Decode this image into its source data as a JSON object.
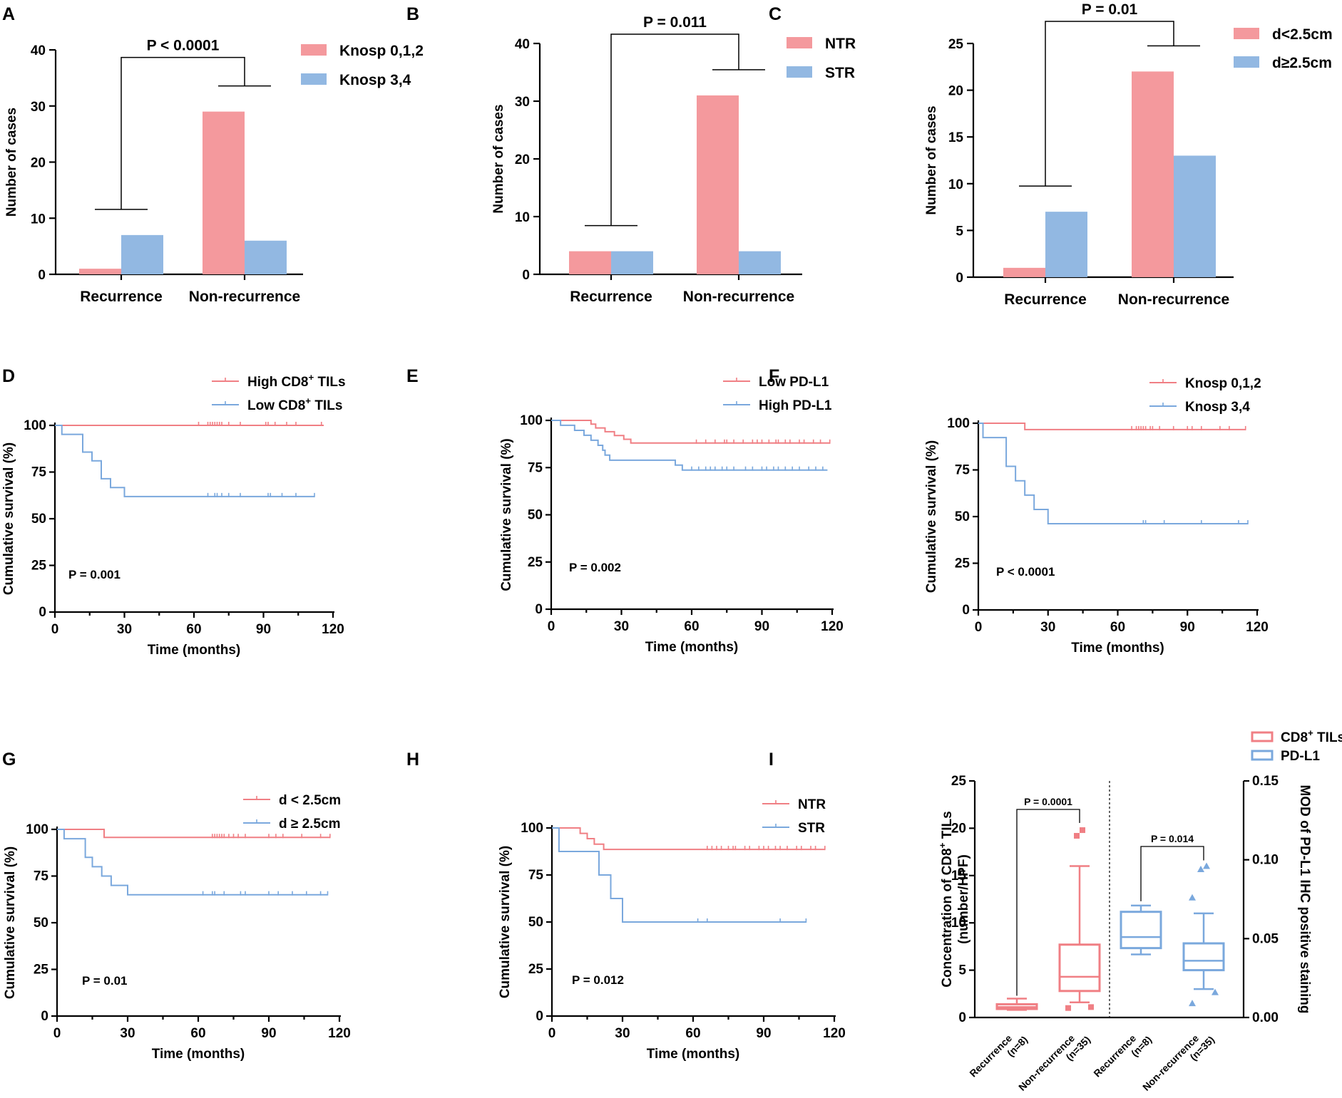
{
  "colors": {
    "pink": "#f4999d",
    "blue": "#92b8e2",
    "pink_line": "#f07f84",
    "blue_line": "#7aa8dd",
    "axis": "#000000"
  },
  "chart_data": [
    {
      "panel": "A",
      "type": "bar",
      "categories": [
        "Recurrence",
        "Non-recurrence"
      ],
      "series": [
        {
          "name": "Knosp 0,1,2",
          "values": [
            1,
            29
          ],
          "color": "pink"
        },
        {
          "name": "Knosp 3,4",
          "values": [
            7,
            6
          ],
          "color": "blue"
        }
      ],
      "ylabel": "Number of cases",
      "ylim": [
        0,
        40
      ],
      "yticks": [
        0,
        10,
        20,
        30,
        40
      ],
      "p_value": "P < 0.0001"
    },
    {
      "panel": "B",
      "type": "bar",
      "categories": [
        "Recurrence",
        "Non-recurrence"
      ],
      "series": [
        {
          "name": "NTR",
          "values": [
            4,
            31
          ],
          "color": "pink"
        },
        {
          "name": "STR",
          "values": [
            4,
            4
          ],
          "color": "blue"
        }
      ],
      "ylabel": "Number of cases",
      "ylim": [
        0,
        40
      ],
      "yticks": [
        0,
        10,
        20,
        30,
        40
      ],
      "p_value": "P = 0.011"
    },
    {
      "panel": "C",
      "type": "bar",
      "categories": [
        "Recurrence",
        "Non-recurrence"
      ],
      "series": [
        {
          "name": "d<2.5cm",
          "values": [
            1,
            22
          ],
          "color": "pink"
        },
        {
          "name": "d≥2.5cm",
          "values": [
            7,
            13
          ],
          "color": "blue"
        }
      ],
      "ylabel": "Number of cases",
      "ylim": [
        0,
        25
      ],
      "yticks": [
        0,
        5,
        10,
        15,
        20,
        25
      ],
      "p_value": "P = 0.01"
    },
    {
      "panel": "D",
      "type": "line",
      "xlabel": "Time (months)",
      "ylabel": "Cumulative survival (%)",
      "xlim": [
        0,
        120
      ],
      "xticks": [
        0,
        30,
        60,
        90,
        120
      ],
      "ylim": [
        0,
        100
      ],
      "yticks": [
        0,
        25,
        50,
        75,
        100
      ],
      "p_value": "P = 0.001",
      "series": [
        {
          "name": "High CD8",
          "sup": "+",
          "suffix": " TILs",
          "color": "pink",
          "steps": [
            [
              0,
              100
            ],
            [
              116,
              100
            ]
          ],
          "censors": [
            62,
            66,
            67,
            68,
            69,
            70,
            71,
            72,
            75,
            80,
            91,
            92,
            95,
            100,
            104,
            115
          ]
        },
        {
          "name": "Low CD8",
          "sup": "+",
          "suffix": " TILs",
          "color": "blue",
          "steps": [
            [
              0,
              100
            ],
            [
              3,
              95.2
            ],
            [
              12,
              85.7
            ],
            [
              16,
              81
            ],
            [
              20,
              71.4
            ],
            [
              24,
              66.7
            ],
            [
              30,
              61.9
            ],
            [
              112,
              61.9
            ]
          ],
          "censors": [
            66,
            69,
            70,
            72,
            75,
            80,
            92,
            93,
            98,
            104,
            112
          ]
        }
      ]
    },
    {
      "panel": "E",
      "type": "line",
      "xlabel": "Time (months)",
      "ylabel": "Cumulative survival (%)",
      "xlim": [
        0,
        120
      ],
      "xticks": [
        0,
        30,
        60,
        90,
        120
      ],
      "ylim": [
        0,
        100
      ],
      "yticks": [
        0,
        25,
        50,
        75,
        100
      ],
      "p_value": "P = 0.002",
      "series": [
        {
          "name": "Low PD-L1",
          "color": "pink",
          "steps": [
            [
              0,
              100
            ],
            [
              17,
              98
            ],
            [
              19,
              96
            ],
            [
              23,
              94
            ],
            [
              27,
              92
            ],
            [
              31,
              90
            ],
            [
              34,
              88
            ],
            [
              119,
              88
            ]
          ],
          "censors": [
            62,
            66,
            70,
            74,
            75,
            78,
            82,
            86,
            88,
            90,
            93,
            96,
            97,
            100,
            102,
            106,
            108,
            112,
            115,
            119
          ]
        },
        {
          "name": "High PD-L1",
          "color": "blue",
          "steps": [
            [
              0,
              100
            ],
            [
              4,
              97.4
            ],
            [
              10,
              94.7
            ],
            [
              14,
              92.1
            ],
            [
              17,
              89.5
            ],
            [
              20,
              86.8
            ],
            [
              22,
              84.2
            ],
            [
              23,
              81.6
            ],
            [
              25,
              78.9
            ],
            [
              53,
              76.3
            ],
            [
              56,
              73.7
            ],
            [
              118,
              73.7
            ]
          ],
          "censors": [
            60,
            63,
            66,
            68,
            70,
            73,
            75,
            78,
            83,
            86,
            90,
            92,
            95,
            97,
            100,
            103,
            106,
            110,
            113,
            116
          ]
        }
      ]
    },
    {
      "panel": "F",
      "type": "line",
      "xlabel": "Time (months)",
      "ylabel": "Cumulative survival (%)",
      "xlim": [
        0,
        120
      ],
      "xticks": [
        0,
        30,
        60,
        90,
        120
      ],
      "ylim": [
        0,
        100
      ],
      "yticks": [
        0,
        25,
        50,
        75,
        100
      ],
      "p_value": "P < 0.0001",
      "series": [
        {
          "name": "Knosp 0,1,2",
          "color": "pink",
          "steps": [
            [
              0,
              100
            ],
            [
              20,
              96.6
            ],
            [
              115,
              96.6
            ]
          ],
          "censors": [
            66,
            68,
            69,
            70,
            71,
            72,
            74,
            75,
            78,
            84,
            90,
            92,
            96,
            104,
            108,
            115
          ]
        },
        {
          "name": "Knosp 3,4",
          "color": "blue",
          "steps": [
            [
              0,
              100
            ],
            [
              2,
              92.3
            ],
            [
              12,
              76.9
            ],
            [
              16,
              69.2
            ],
            [
              20,
              61.5
            ],
            [
              24,
              53.8
            ],
            [
              30,
              46.2
            ],
            [
              116,
              46.2
            ]
          ],
          "censors": [
            71,
            72,
            80,
            96,
            112,
            116
          ]
        }
      ]
    },
    {
      "panel": "G",
      "type": "line",
      "xlabel": "Time (months)",
      "ylabel": "Cumulative survival (%)",
      "xlim": [
        0,
        120
      ],
      "xticks": [
        0,
        30,
        60,
        90,
        120
      ],
      "ylim": [
        0,
        100
      ],
      "yticks": [
        0,
        25,
        50,
        75,
        100
      ],
      "p_value": "P = 0.01",
      "series": [
        {
          "name": "d < 2.5cm",
          "color": "pink",
          "steps": [
            [
              0,
              100
            ],
            [
              20,
              95.7
            ],
            [
              116,
              95.7
            ]
          ],
          "censors": [
            66,
            67,
            68,
            69,
            70,
            71,
            73,
            75,
            77,
            80,
            90,
            93,
            96,
            104,
            112,
            116
          ]
        },
        {
          "name": "d ≥ 2.5cm",
          "color": "blue",
          "steps": [
            [
              0,
              100
            ],
            [
              3,
              95
            ],
            [
              12,
              85
            ],
            [
              15,
              80
            ],
            [
              19,
              75
            ],
            [
              23,
              70
            ],
            [
              30,
              65
            ],
            [
              115,
              65
            ]
          ],
          "censors": [
            62,
            66,
            67,
            71,
            78,
            80,
            90,
            94,
            100,
            106,
            112,
            115
          ]
        }
      ]
    },
    {
      "panel": "H",
      "type": "line",
      "xlabel": "Time (months)",
      "ylabel": "Cumulative survival (%)",
      "xlim": [
        0,
        120
      ],
      "xticks": [
        0,
        30,
        60,
        90,
        120
      ],
      "ylim": [
        0,
        100
      ],
      "yticks": [
        0,
        25,
        50,
        75,
        100
      ],
      "p_value": "P = 0.012",
      "series": [
        {
          "name": "NTR",
          "color": "pink",
          "steps": [
            [
              0,
              100
            ],
            [
              12,
              97.1
            ],
            [
              15,
              94.3
            ],
            [
              18,
              91.4
            ],
            [
              22,
              88.6
            ],
            [
              116,
              88.6
            ]
          ],
          "censors": [
            66,
            68,
            70,
            72,
            75,
            77,
            78,
            82,
            84,
            88,
            90,
            92,
            95,
            97,
            100,
            104,
            106,
            110,
            112,
            116
          ]
        },
        {
          "name": "STR",
          "color": "blue",
          "steps": [
            [
              0,
              100
            ],
            [
              3,
              87.5
            ],
            [
              20,
              75
            ],
            [
              25,
              62.5
            ],
            [
              30,
              50
            ],
            [
              108,
              50
            ]
          ],
          "censors": [
            62,
            66,
            97,
            108
          ]
        }
      ]
    },
    {
      "panel": "I",
      "type": "box",
      "legend": [
        {
          "name": "CD8",
          "sup": "+",
          "suffix": " TILs",
          "color": "pink"
        },
        {
          "name": "PD-L1",
          "color": "blue"
        }
      ],
      "ylabel_left_line1": "Concentration of CD8",
      "ylabel_left_sup": "+",
      "ylabel_left_line1_suffix": " TILs",
      "ylabel_left_line2": "(number/HPF)",
      "ylabel_right": "MOD of PD-L1 IHC positive staining",
      "ylim_left": [
        0,
        25
      ],
      "yticks_left": [
        0,
        5,
        10,
        15,
        20,
        25
      ],
      "ylim_right": [
        0,
        0.15
      ],
      "yticks_right": [
        "0.00",
        "0.05",
        "0.10",
        "0.15"
      ],
      "groups": [
        {
          "label": "Recurrence",
          "n": "(n=8)",
          "axis": "left",
          "color": "pink",
          "min": 0.8,
          "q1": 0.9,
          "median": 1.1,
          "q3": 1.4,
          "max": 2.0,
          "outliers": []
        },
        {
          "label": "Non-recurrence",
          "n": "(n=35)",
          "axis": "left",
          "color": "pink",
          "min": 1.6,
          "q1": 2.8,
          "median": 4.3,
          "q3": 7.7,
          "max": 16.0,
          "outliers": [
            19.2,
            19.8,
            1.0,
            1.1
          ]
        },
        {
          "label": "Recurrence",
          "n": "(n=8)",
          "axis": "right",
          "color": "blue",
          "min": 0.04,
          "q1": 0.044,
          "median": 0.051,
          "q3": 0.067,
          "max": 0.071,
          "outliers": []
        },
        {
          "label": "Non-recurrence",
          "n": "(n=35)",
          "axis": "right",
          "color": "blue",
          "min": 0.018,
          "q1": 0.03,
          "median": 0.036,
          "q3": 0.047,
          "max": 0.066,
          "outliers": [
            0.094,
            0.096,
            0.076,
            0.016,
            0.009
          ]
        }
      ],
      "comparisons": [
        {
          "text": "P = 0.0001"
        },
        {
          "text": "P = 0.014"
        }
      ]
    }
  ]
}
